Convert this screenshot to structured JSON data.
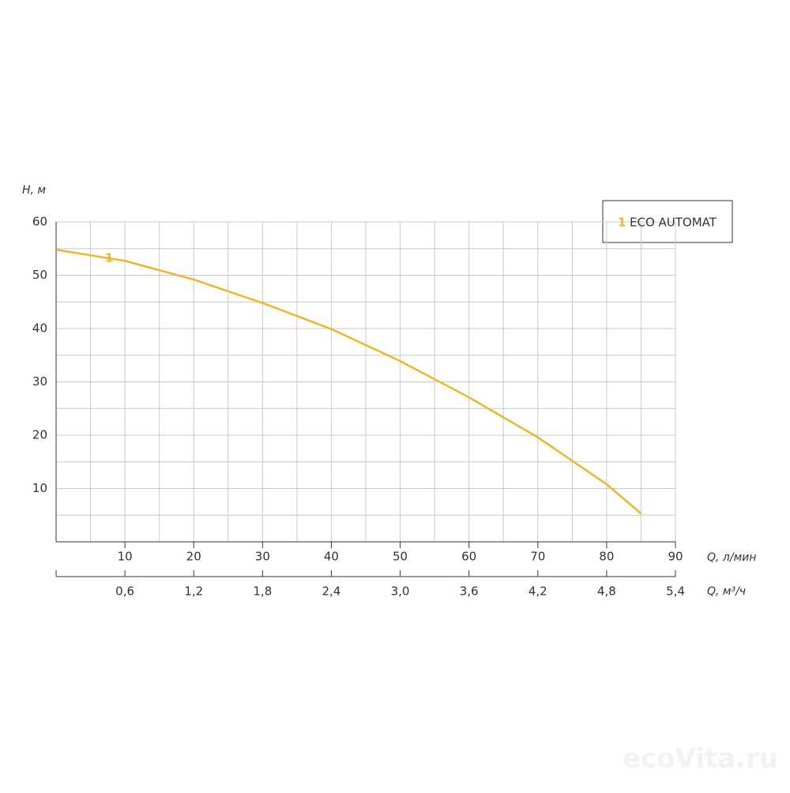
{
  "chart_data": {
    "type": "line",
    "y_label": "H, м",
    "x_label": "Q, л/мин",
    "x2_label": "Q, м³/ч",
    "x": [
      0,
      10,
      20,
      30,
      40,
      50,
      60,
      70,
      80,
      85
    ],
    "series": [
      {
        "name": "ECO AUTOMAT",
        "label": "1",
        "color": "#f0b429",
        "values": [
          54.8,
          52.7,
          49.2,
          44.8,
          39.9,
          33.9,
          27.1,
          19.6,
          10.8,
          5.3
        ]
      }
    ],
    "xlim": [
      0,
      90
    ],
    "xticks": [
      10,
      20,
      30,
      40,
      50,
      60,
      70,
      80,
      90
    ],
    "x_minor_ticks": [
      5,
      15,
      25,
      35,
      45,
      55,
      65,
      75,
      85
    ],
    "x2lim": [
      0,
      5.4
    ],
    "x2ticks": [
      {
        "value": 0.6,
        "label": "0,6"
      },
      {
        "value": 1.2,
        "label": "1,2"
      },
      {
        "value": 1.8,
        "label": "1,8"
      },
      {
        "value": 2.4,
        "label": "2,4"
      },
      {
        "value": 3.0,
        "label": "3,0"
      },
      {
        "value": 3.6,
        "label": "3,6"
      },
      {
        "value": 4.2,
        "label": "4,2"
      },
      {
        "value": 4.8,
        "label": "4,8"
      },
      {
        "value": 5.4,
        "label": "5,4"
      }
    ],
    "ylim": [
      0,
      60
    ],
    "yticks": [
      10,
      20,
      30,
      40,
      50,
      60
    ],
    "y_minor_ticks": [
      5,
      15,
      25,
      35,
      45,
      55
    ],
    "grid": true,
    "legend": "upper right",
    "watermark": "ecoVita.ru"
  }
}
